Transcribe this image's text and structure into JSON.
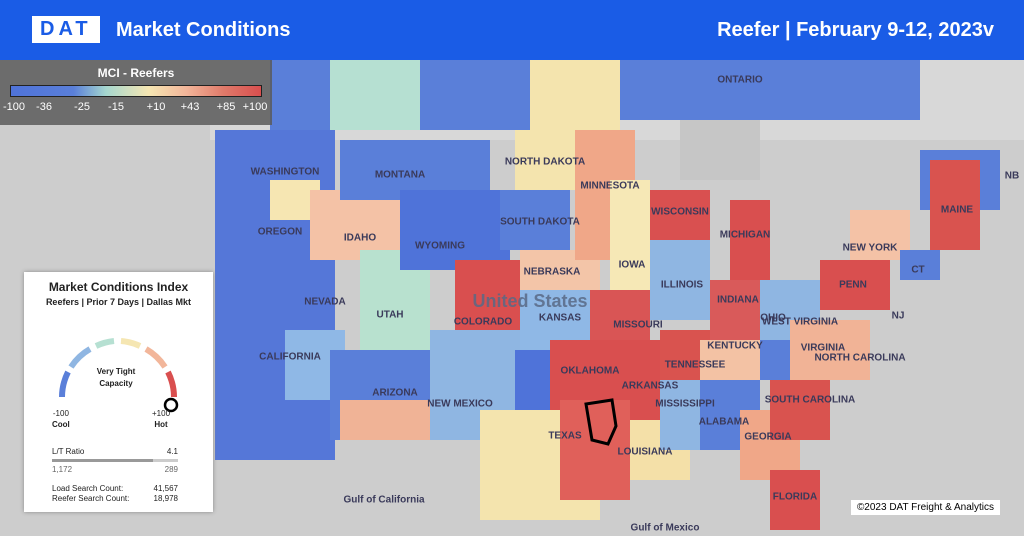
{
  "header": {
    "logo": "DAT",
    "title": "Market Conditions",
    "equipment": "Reefer",
    "dates": "| February 9-12, 2023v"
  },
  "legend": {
    "title": "MCI - Reefers",
    "ticks": [
      "-100",
      "-36",
      "-25",
      "-15",
      "+10",
      "+43",
      "+85",
      "+100"
    ]
  },
  "panel": {
    "title": "Market Conditions Index",
    "subtitle": "Reefers | Prior 7 Days | Dallas Mkt",
    "status": "Very Tight Capacity",
    "min": "-100",
    "min_label": "Cool",
    "max": "+100",
    "max_label": "Hot",
    "ratio_label": "L/T Ratio",
    "ratio": "4.1",
    "loads": "1,172",
    "trucks": "289",
    "load_search_label": "Load Search Count:",
    "load_search": "41,567",
    "reefer_search_label": "Reefer Search Count:",
    "reefer_search": "18,978"
  },
  "map": {
    "country": "United States",
    "labels": [
      "ONTARIO",
      "WASHINGTON",
      "OREGON",
      "IDAHO",
      "MONTANA",
      "WYOMING",
      "NEVADA",
      "UTAH",
      "CALIFORNIA",
      "ARIZONA",
      "COLORADO",
      "NEW MEXICO",
      "NORTH DAKOTA",
      "SOUTH DAKOTA",
      "NEBRASKA",
      "KANSAS",
      "OKLAHOMA",
      "TEXAS",
      "MINNESOTA",
      "IOWA",
      "MISSOURI",
      "ARKANSAS",
      "LOUISIANA",
      "WISCONSIN",
      "ILLINOIS",
      "INDIANA",
      "MICHIGAN",
      "OHIO",
      "KENTUCKY",
      "TENNESSEE",
      "MISSISSIPPI",
      "ALABAMA",
      "GEORGIA",
      "FLORIDA",
      "SOUTH CAROLINA",
      "NORTH CAROLINA",
      "VIRGINIA",
      "WEST VIRGINIA",
      "PENN",
      "NEW YORK",
      "MAINE",
      "NB",
      "NJ",
      "CT",
      "Gulf of Mexico",
      "Gulf of California"
    ]
  },
  "footer": {
    "copyright": "©2023 DAT Freight & Analytics"
  }
}
